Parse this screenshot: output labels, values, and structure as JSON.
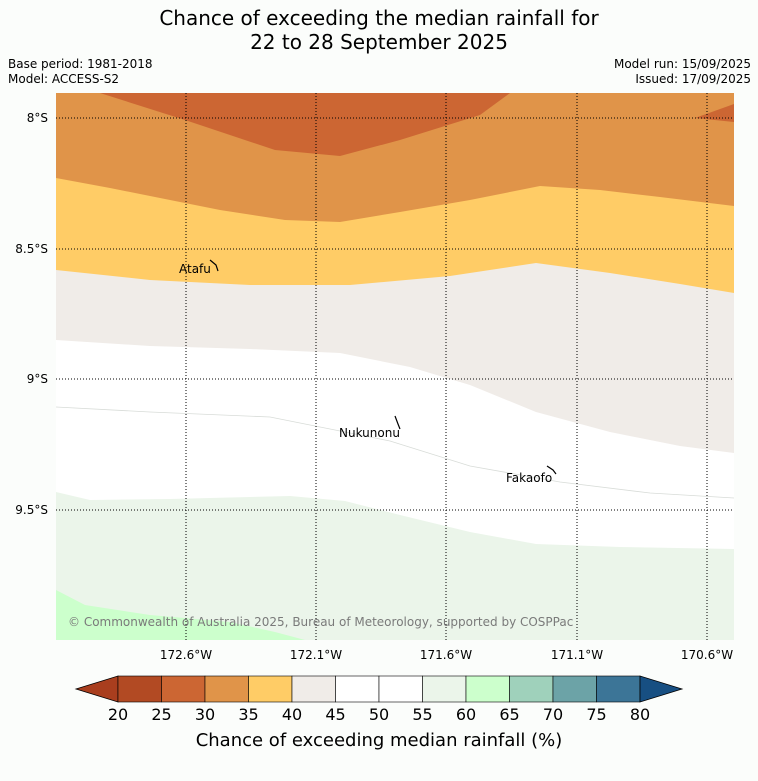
{
  "title_line1": "Chance of exceeding the median rainfall for",
  "title_line2": "22 to 28 September 2025",
  "base_period": "Base period: 1981-2018",
  "model": "Model: ACCESS-S2",
  "model_run": "Model run: 15/09/2025",
  "issued": "Issued: 17/09/2025",
  "latitudes": [
    "8°S",
    "8.5°S",
    "9°S",
    "9.5°S"
  ],
  "longitudes": [
    "172.6°W",
    "172.1°W",
    "171.6°W",
    "171.1°W",
    "170.6°W"
  ],
  "places": [
    "Atafu",
    "Nukunonu",
    "Fakaofo"
  ],
  "copyright": "© Commonwealth of Australia 2025, Bureau of Meteorology, supported by COSPPac",
  "colorbar": {
    "ticks": [
      "20",
      "25",
      "30",
      "35",
      "40",
      "45",
      "50",
      "55",
      "60",
      "65",
      "70",
      "75",
      "80"
    ],
    "colors": [
      "#a93e1e",
      "#b24a23",
      "#cc6633",
      "#e09449",
      "#ffcc66",
      "#f0ece8",
      "#ffffff",
      "#ffffff",
      "#ebf5ea",
      "#ccffcc",
      "#9fd1bb",
      "#6ca3a7",
      "#3c7597",
      "#174f82"
    ],
    "title": "Chance of exceeding median rainfall (%)"
  }
}
